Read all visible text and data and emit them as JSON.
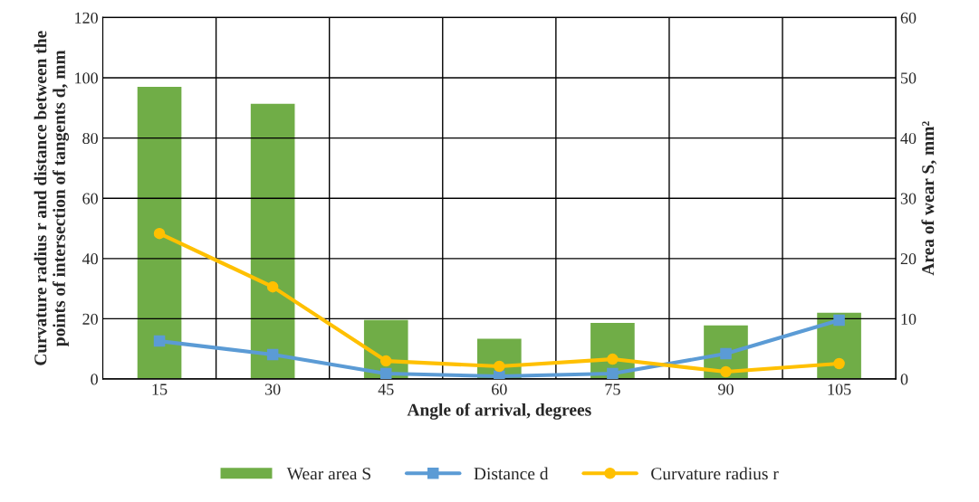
{
  "chart_data": {
    "type": "line",
    "xlabel": "Angle of arrival, degrees",
    "ylabel": "Curvature radius r and distance between the\npoints of intersection of tangents d, mm",
    "y2label": "Area of wear S, mm²",
    "categories": [
      "15",
      "30",
      "45",
      "60",
      "75",
      "90",
      "105"
    ],
    "series": [
      {
        "name": "Wear area S",
        "type": "bar",
        "axis": "y2",
        "color": "#70ad47",
        "values": [
          48.6,
          45.8,
          9.9,
          6.8,
          9.4,
          9.0,
          11.1
        ]
      },
      {
        "name": "Distance d",
        "marker": "square",
        "color": "#5b9bd5",
        "values": [
          12.6,
          8.1,
          1.8,
          0.9,
          1.8,
          8.4,
          19.5
        ]
      },
      {
        "name": "Curvature radius r",
        "marker": "circle",
        "color": "#ffc000",
        "values": [
          48.3,
          30.6,
          6.0,
          4.2,
          6.6,
          2.4,
          5.1
        ]
      }
    ],
    "ylim": [
      0,
      120
    ],
    "yticks": [
      0,
      20,
      40,
      60,
      80,
      100,
      120
    ],
    "y2lim": [
      0,
      60
    ],
    "y2ticks": [
      0,
      10,
      20,
      30,
      40,
      50,
      60
    ],
    "grid": true,
    "legend": "bottom"
  }
}
